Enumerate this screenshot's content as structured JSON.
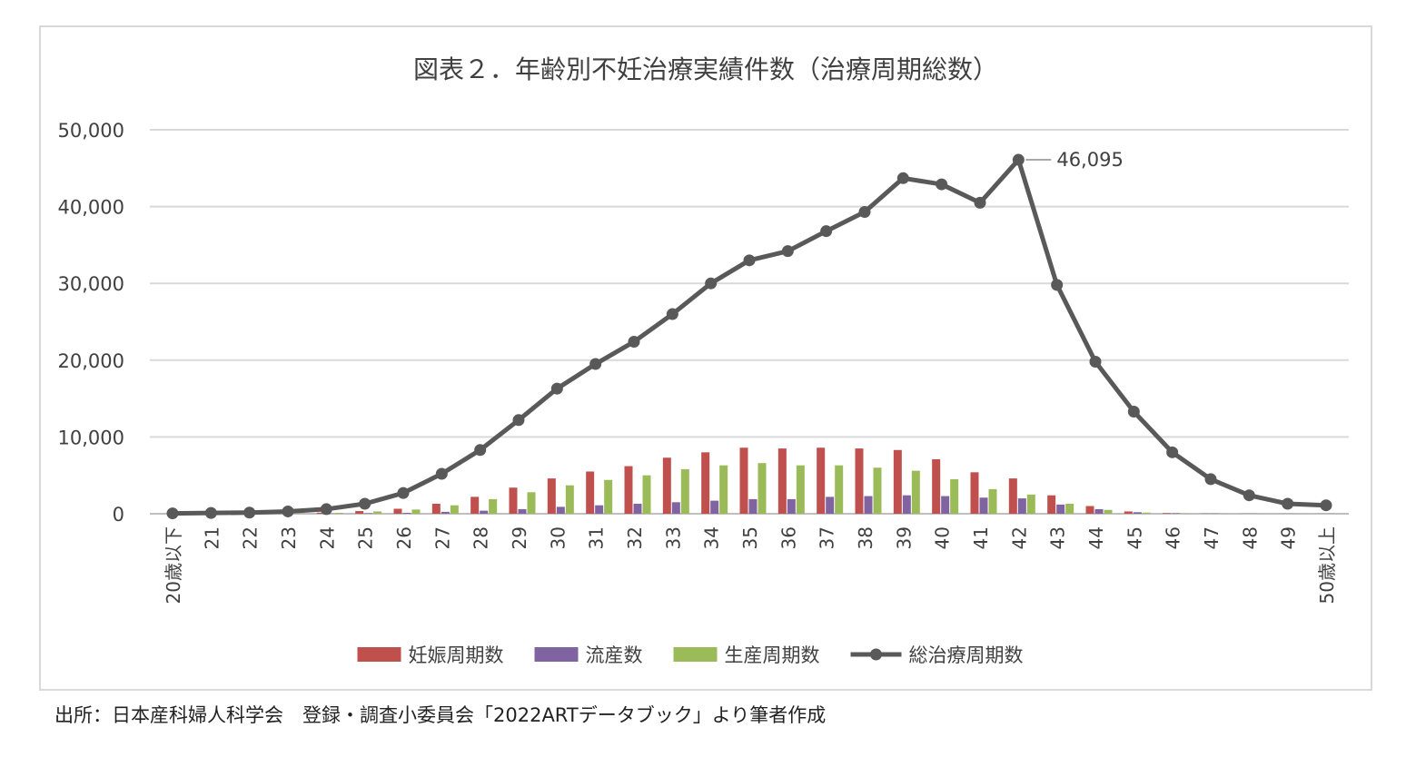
{
  "chart_data": {
    "type": "bar",
    "title": "図表２．年齢別不妊治療実績件数（治療周期総数）",
    "categories": [
      "20歳以下",
      "21",
      "22",
      "23",
      "24",
      "25",
      "26",
      "27",
      "28",
      "29",
      "30",
      "31",
      "32",
      "33",
      "34",
      "35",
      "36",
      "37",
      "38",
      "39",
      "40",
      "41",
      "42",
      "43",
      "44",
      "45",
      "46",
      "47",
      "48",
      "49",
      "50歳以上"
    ],
    "series": [
      {
        "name": "妊娠周期数",
        "type": "bar",
        "color": "#c0504d",
        "values": [
          5,
          10,
          25,
          60,
          150,
          350,
          650,
          1300,
          2200,
          3400,
          4600,
          5500,
          6200,
          7300,
          8000,
          8600,
          8500,
          8600,
          8500,
          8300,
          7100,
          5400,
          4600,
          2400,
          1000,
          300,
          80,
          30,
          15,
          10,
          10
        ]
      },
      {
        "name": "流産数",
        "type": "bar",
        "color": "#8064a2",
        "values": [
          2,
          3,
          5,
          10,
          25,
          60,
          110,
          250,
          400,
          600,
          900,
          1100,
          1300,
          1500,
          1700,
          1900,
          1900,
          2200,
          2300,
          2400,
          2300,
          2100,
          2000,
          1200,
          600,
          200,
          60,
          30,
          15,
          10,
          10
        ]
      },
      {
        "name": "生産周期数",
        "type": "bar",
        "color": "#9bbb59",
        "values": [
          3,
          5,
          20,
          50,
          120,
          300,
          550,
          1100,
          1900,
          2800,
          3700,
          4400,
          5000,
          5800,
          6300,
          6600,
          6300,
          6300,
          6000,
          5600,
          4500,
          3200,
          2500,
          1300,
          500,
          150,
          30,
          15,
          10,
          5,
          5
        ]
      },
      {
        "name": "総治療周期数",
        "type": "line",
        "color": "#595959",
        "values": [
          50,
          100,
          150,
          300,
          600,
          1300,
          2700,
          5200,
          8300,
          12200,
          16300,
          19500,
          22400,
          26000,
          30000,
          33000,
          34200,
          36800,
          39300,
          43700,
          42900,
          40500,
          46095,
          29800,
          19800,
          13300,
          8000,
          4500,
          2400,
          1300,
          1100
        ]
      }
    ],
    "ylim": [
      0,
      50000
    ],
    "yticks": [
      "0",
      "10,000",
      "20,000",
      "30,000",
      "40,000",
      "50,000"
    ],
    "ytick_values": [
      0,
      10000,
      20000,
      30000,
      40000,
      50000
    ],
    "grid": true,
    "legend_position": "bottom",
    "annotation": {
      "category": "42",
      "text": "46,095"
    },
    "xlabel": "",
    "ylabel": ""
  },
  "source_note": "出所：日本産科婦人科学会　登録・調査小委員会「2022ARTデータブック」より筆者作成"
}
